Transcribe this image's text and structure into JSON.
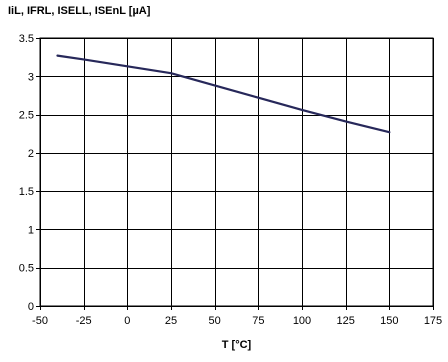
{
  "chart_data": {
    "type": "line",
    "ylabel": "IiL, IFRL, ISELL, ISEnL [µA]",
    "xlabel": "T [°C]",
    "xlim": [
      -50,
      175
    ],
    "ylim": [
      0,
      3.5
    ],
    "x_ticks": [
      -50,
      -25,
      0,
      25,
      50,
      75,
      100,
      125,
      150,
      175
    ],
    "y_ticks": [
      0,
      0.5,
      1,
      1.5,
      2,
      2.5,
      3,
      3.5
    ],
    "x_tick_labels": [
      "-50",
      "-25",
      "0",
      "25",
      "50",
      "75",
      "100",
      "125",
      "150",
      "175"
    ],
    "y_tick_labels": [
      "0",
      "0.5",
      "1",
      "1.5",
      "2",
      "2.5",
      "3",
      "3.5"
    ],
    "grid": true,
    "series": [
      {
        "color": "#27285a",
        "x": [
          -40,
          -25,
          0,
          25,
          50,
          75,
          100,
          125,
          150
        ],
        "y": [
          3.27,
          3.22,
          3.13,
          3.04,
          2.88,
          2.72,
          2.56,
          2.41,
          2.27
        ]
      }
    ]
  }
}
